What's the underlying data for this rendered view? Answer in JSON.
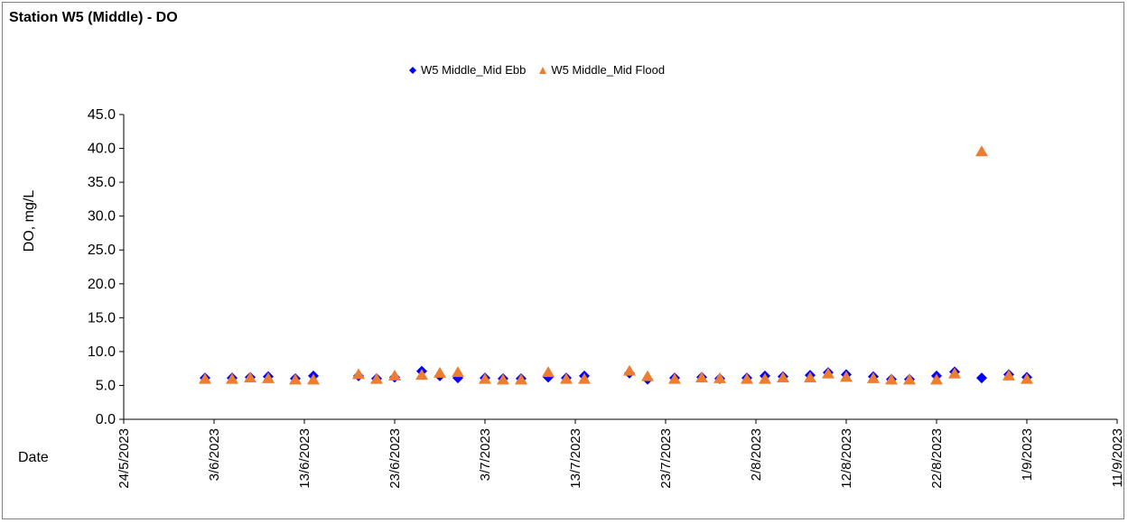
{
  "chart_data": {
    "type": "scatter",
    "title": "Station W5 (Middle) - DO",
    "xlabel": "Date",
    "ylabel": "DO, mg/L",
    "ylim": [
      0,
      45
    ],
    "yticks": [
      "0.0",
      "5.0",
      "10.0",
      "15.0",
      "20.0",
      "25.0",
      "30.0",
      "35.0",
      "40.0",
      "45.0"
    ],
    "xlim": [
      "2023-05-24",
      "2023-09-11"
    ],
    "xticks": [
      "24/5/2023",
      "3/6/2023",
      "13/6/2023",
      "23/6/2023",
      "3/7/2023",
      "13/7/2023",
      "23/7/2023",
      "2/8/2023",
      "12/8/2023",
      "22/8/2023",
      "1/9/2023",
      "11/9/2023"
    ],
    "legend_position": "top",
    "series": [
      {
        "name": "W5 Middle_Mid Ebb",
        "marker": "diamond",
        "color": "#0000FF",
        "points": [
          [
            "2023-06-02",
            6.1
          ],
          [
            "2023-06-05",
            6.1
          ],
          [
            "2023-06-07",
            6.2
          ],
          [
            "2023-06-09",
            6.3
          ],
          [
            "2023-06-12",
            6.0
          ],
          [
            "2023-06-14",
            6.4
          ],
          [
            "2023-06-19",
            6.4
          ],
          [
            "2023-06-21",
            6.0
          ],
          [
            "2023-06-23",
            6.2
          ],
          [
            "2023-06-26",
            7.1
          ],
          [
            "2023-06-28",
            6.4
          ],
          [
            "2023-06-30",
            6.1
          ],
          [
            "2023-07-03",
            6.1
          ],
          [
            "2023-07-05",
            6.0
          ],
          [
            "2023-07-07",
            6.0
          ],
          [
            "2023-07-10",
            6.2
          ],
          [
            "2023-07-12",
            6.1
          ],
          [
            "2023-07-14",
            6.4
          ],
          [
            "2023-07-19",
            6.8
          ],
          [
            "2023-07-21",
            5.9
          ],
          [
            "2023-07-24",
            6.1
          ],
          [
            "2023-07-27",
            6.2
          ],
          [
            "2023-07-29",
            6.0
          ],
          [
            "2023-08-01",
            6.1
          ],
          [
            "2023-08-03",
            6.4
          ],
          [
            "2023-08-05",
            6.3
          ],
          [
            "2023-08-08",
            6.5
          ],
          [
            "2023-08-10",
            6.9
          ],
          [
            "2023-08-12",
            6.6
          ],
          [
            "2023-08-15",
            6.3
          ],
          [
            "2023-08-17",
            5.9
          ],
          [
            "2023-08-19",
            5.9
          ],
          [
            "2023-08-22",
            6.4
          ],
          [
            "2023-08-24",
            7.0
          ],
          [
            "2023-08-27",
            6.1
          ],
          [
            "2023-08-30",
            6.6
          ],
          [
            "2023-09-01",
            6.2
          ]
        ]
      },
      {
        "name": "W5 Middle_Mid Flood",
        "marker": "triangle",
        "color": "#ED7D31",
        "points": [
          [
            "2023-06-02",
            5.9
          ],
          [
            "2023-06-05",
            5.9
          ],
          [
            "2023-06-07",
            6.1
          ],
          [
            "2023-06-09",
            6.0
          ],
          [
            "2023-06-12",
            5.8
          ],
          [
            "2023-06-14",
            5.8
          ],
          [
            "2023-06-19",
            6.6
          ],
          [
            "2023-06-21",
            5.9
          ],
          [
            "2023-06-23",
            6.4
          ],
          [
            "2023-06-26",
            6.5
          ],
          [
            "2023-06-28",
            6.8
          ],
          [
            "2023-06-30",
            6.9
          ],
          [
            "2023-07-03",
            5.9
          ],
          [
            "2023-07-05",
            5.8
          ],
          [
            "2023-07-07",
            5.8
          ],
          [
            "2023-07-10",
            6.9
          ],
          [
            "2023-07-12",
            5.9
          ],
          [
            "2023-07-14",
            5.9
          ],
          [
            "2023-07-19",
            7.1
          ],
          [
            "2023-07-21",
            6.3
          ],
          [
            "2023-07-24",
            5.9
          ],
          [
            "2023-07-27",
            6.1
          ],
          [
            "2023-07-29",
            6.0
          ],
          [
            "2023-08-01",
            5.9
          ],
          [
            "2023-08-03",
            5.9
          ],
          [
            "2023-08-05",
            6.1
          ],
          [
            "2023-08-08",
            6.1
          ],
          [
            "2023-08-10",
            6.7
          ],
          [
            "2023-08-12",
            6.2
          ],
          [
            "2023-08-15",
            6.0
          ],
          [
            "2023-08-17",
            5.8
          ],
          [
            "2023-08-19",
            5.8
          ],
          [
            "2023-08-22",
            5.8
          ],
          [
            "2023-08-24",
            6.7
          ],
          [
            "2023-08-27",
            39.5
          ],
          [
            "2023-08-30",
            6.4
          ],
          [
            "2023-09-01",
            5.9
          ]
        ]
      }
    ]
  }
}
